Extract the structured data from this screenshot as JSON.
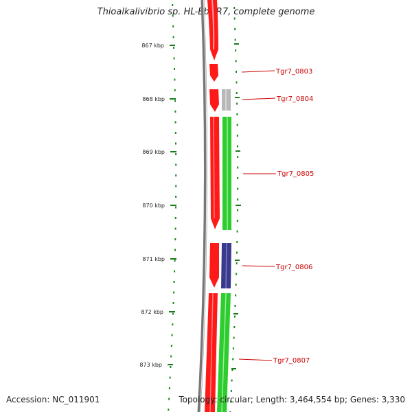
{
  "title": "Thioalkalivibrio sp. HL-EbGR7, complete genome",
  "scale_ticks": [
    "867 kbp",
    "868 kbp",
    "869 kbp",
    "870 kbp",
    "871 kbp",
    "872 kbp",
    "873 kbp"
  ],
  "genes": [
    {
      "id": "Tgr7_0803",
      "strand": "forward",
      "color": "#ff0000"
    },
    {
      "id": "Tgr7_0804",
      "strand": "reverse",
      "color": "#b0b0b0"
    },
    {
      "id": "Tgr7_0805",
      "strand": "reverse",
      "color": "#33cc33"
    },
    {
      "id": "Tgr7_0806",
      "strand": "reverse",
      "color": "#333388"
    },
    {
      "id": "Tgr7_0807",
      "strand": "reverse",
      "color": "#33cc33"
    }
  ],
  "footer": {
    "accession": "Accession: NC_011901",
    "stats": "Topology: circular; Length: 3,464,554 bp; Genes: 3,330"
  }
}
